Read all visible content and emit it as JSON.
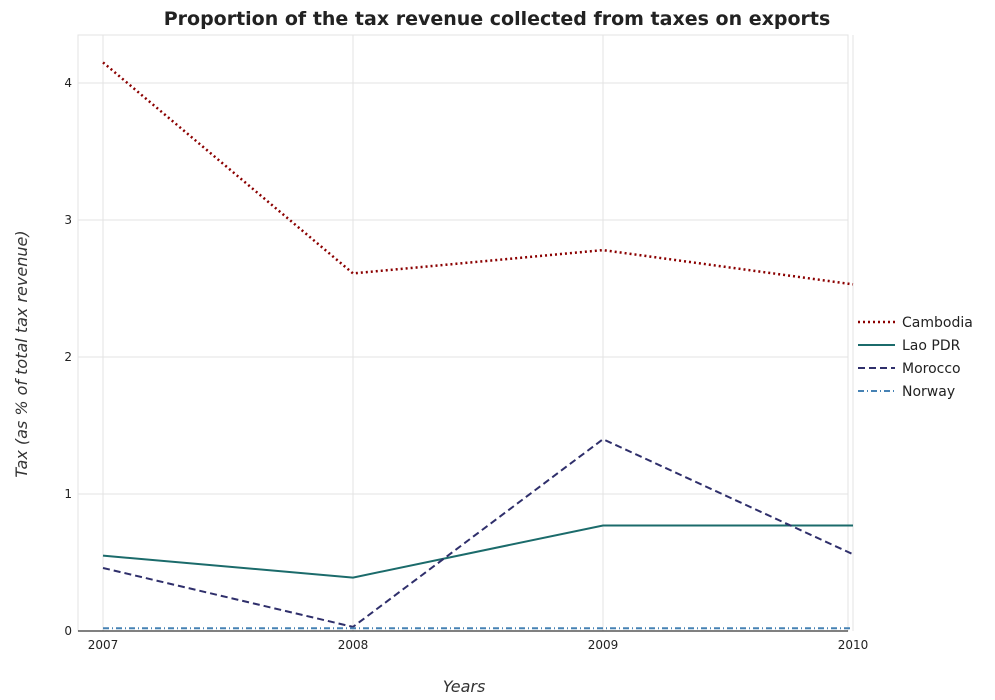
{
  "chart_data": {
    "type": "line",
    "title": "Proportion of the tax revenue collected from taxes on exports",
    "xlabel": "Years",
    "ylabel": "Tax (as % of total tax revenue)",
    "x": [
      "2007",
      "2008",
      "2009",
      "2010"
    ],
    "ylim": [
      0,
      4.35
    ],
    "yticks": [
      0,
      1,
      2,
      3,
      4
    ],
    "grid": true,
    "legend_position": "right",
    "series": [
      {
        "name": "Cambodia",
        "values": [
          4.15,
          2.61,
          2.78,
          2.53
        ],
        "color": "#8b0000",
        "dash": "2,3",
        "width": 2.5
      },
      {
        "name": "Lao PDR",
        "values": [
          0.55,
          0.39,
          0.77,
          0.77
        ],
        "color": "#1b6b6b",
        "dash": "",
        "width": 2
      },
      {
        "name": "Morocco",
        "values": [
          0.46,
          0.03,
          1.4,
          0.56
        ],
        "color": "#2f2f6b",
        "dash": "7,4",
        "width": 2
      },
      {
        "name": "Norway",
        "values": [
          0.02,
          0.02,
          0.02,
          0.02
        ],
        "color": "#4682b4",
        "dash": "6,3,1,3",
        "width": 2
      }
    ]
  }
}
